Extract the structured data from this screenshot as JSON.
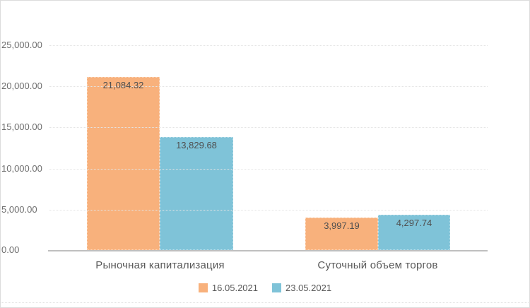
{
  "chart_data": {
    "type": "bar",
    "categories": [
      "Рыночная капитализация",
      "Суточный объем торгов"
    ],
    "series": [
      {
        "name": "16.05.2021",
        "color": "#F8B17C",
        "values": [
          21084.32,
          3997.19
        ],
        "labels": [
          "21,084.32",
          "3,997.19"
        ]
      },
      {
        "name": "23.05.2021",
        "color": "#7FC3D8",
        "values": [
          13829.68,
          4297.74
        ],
        "labels": [
          "13,829.68",
          "4,297.74"
        ]
      }
    ],
    "y_axis": {
      "min": 0,
      "max": 25000,
      "step": 5000,
      "tick_labels": [
        "25,000.00",
        "20,000.00",
        "15,000.00",
        "10,000.00",
        "5,000.00",
        "0.00"
      ]
    },
    "grid": true,
    "legend_position": "bottom",
    "axis_line_color": "#bfbfbf"
  }
}
